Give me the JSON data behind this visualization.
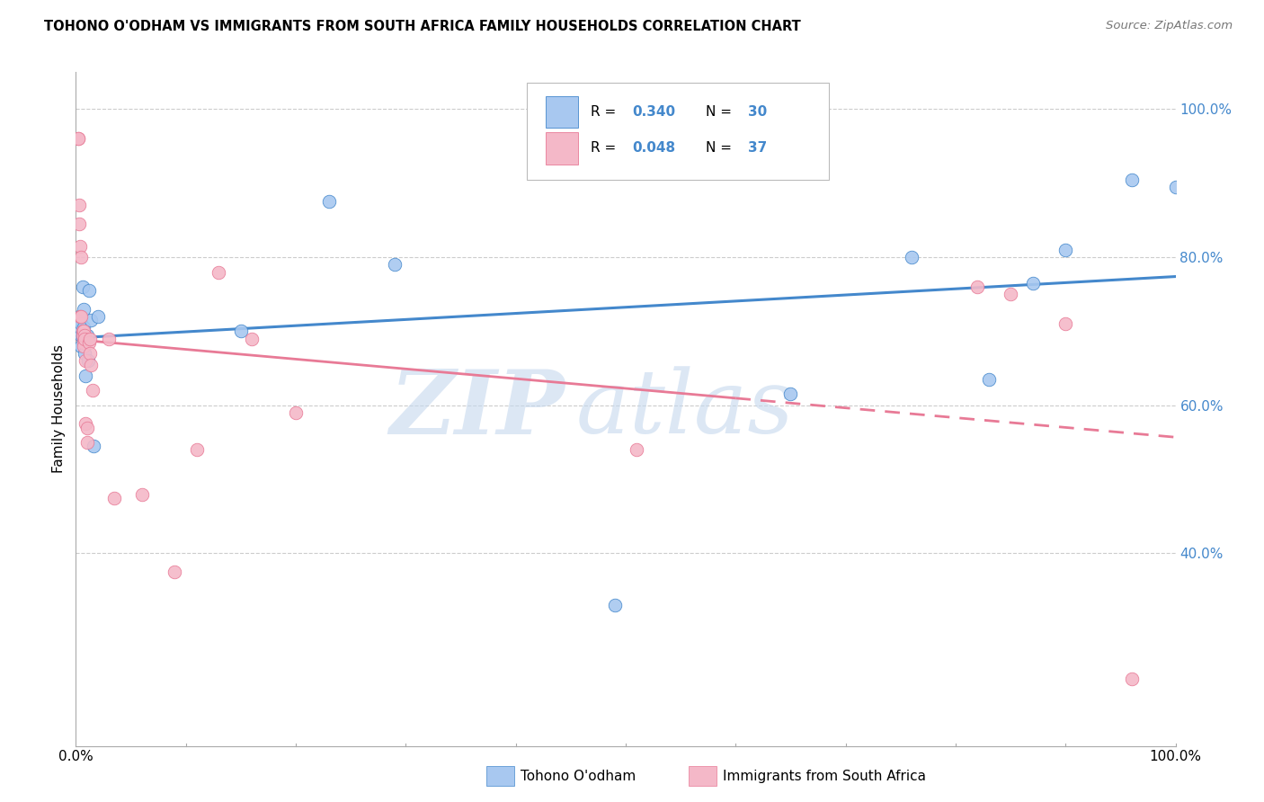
{
  "title": "TOHONO O'ODHAM VS IMMIGRANTS FROM SOUTH AFRICA FAMILY HOUSEHOLDS CORRELATION CHART",
  "source": "Source: ZipAtlas.com",
  "ylabel": "Family Households",
  "R1": 0.34,
  "N1": 30,
  "R2": 0.048,
  "N2": 37,
  "color_blue": "#A8C8F0",
  "color_pink": "#F4B8C8",
  "line_color_blue": "#4488CC",
  "line_color_pink": "#E87A96",
  "watermark_zip": "ZIP",
  "watermark_atlas": "atlas",
  "blue_points_x": [
    0.003,
    0.003,
    0.004,
    0.004,
    0.005,
    0.005,
    0.005,
    0.006,
    0.006,
    0.007,
    0.007,
    0.008,
    0.009,
    0.01,
    0.011,
    0.012,
    0.014,
    0.016,
    0.02,
    0.15,
    0.23,
    0.29,
    0.49,
    0.65,
    0.76,
    0.83,
    0.87,
    0.9,
    0.96,
    1.0
  ],
  "blue_points_y": [
    0.72,
    0.705,
    0.715,
    0.7,
    0.71,
    0.695,
    0.68,
    0.76,
    0.695,
    0.73,
    0.705,
    0.67,
    0.64,
    0.695,
    0.66,
    0.755,
    0.715,
    0.545,
    0.72,
    0.7,
    0.875,
    0.79,
    0.33,
    0.615,
    0.8,
    0.635,
    0.765,
    0.81,
    0.905,
    0.895
  ],
  "pink_points_x": [
    0.002,
    0.002,
    0.003,
    0.003,
    0.004,
    0.004,
    0.005,
    0.005,
    0.006,
    0.006,
    0.007,
    0.007,
    0.007,
    0.008,
    0.008,
    0.009,
    0.009,
    0.01,
    0.01,
    0.012,
    0.013,
    0.013,
    0.014,
    0.015,
    0.03,
    0.035,
    0.06,
    0.09,
    0.11,
    0.13,
    0.16,
    0.2,
    0.51,
    0.82,
    0.85,
    0.9,
    0.96
  ],
  "pink_points_y": [
    0.96,
    0.96,
    0.87,
    0.845,
    0.815,
    0.72,
    0.8,
    0.72,
    0.7,
    0.695,
    0.7,
    0.685,
    0.68,
    0.695,
    0.69,
    0.66,
    0.575,
    0.57,
    0.55,
    0.685,
    0.69,
    0.67,
    0.655,
    0.62,
    0.69,
    0.475,
    0.48,
    0.375,
    0.54,
    0.78,
    0.69,
    0.59,
    0.54,
    0.76,
    0.75,
    0.71,
    0.23
  ]
}
